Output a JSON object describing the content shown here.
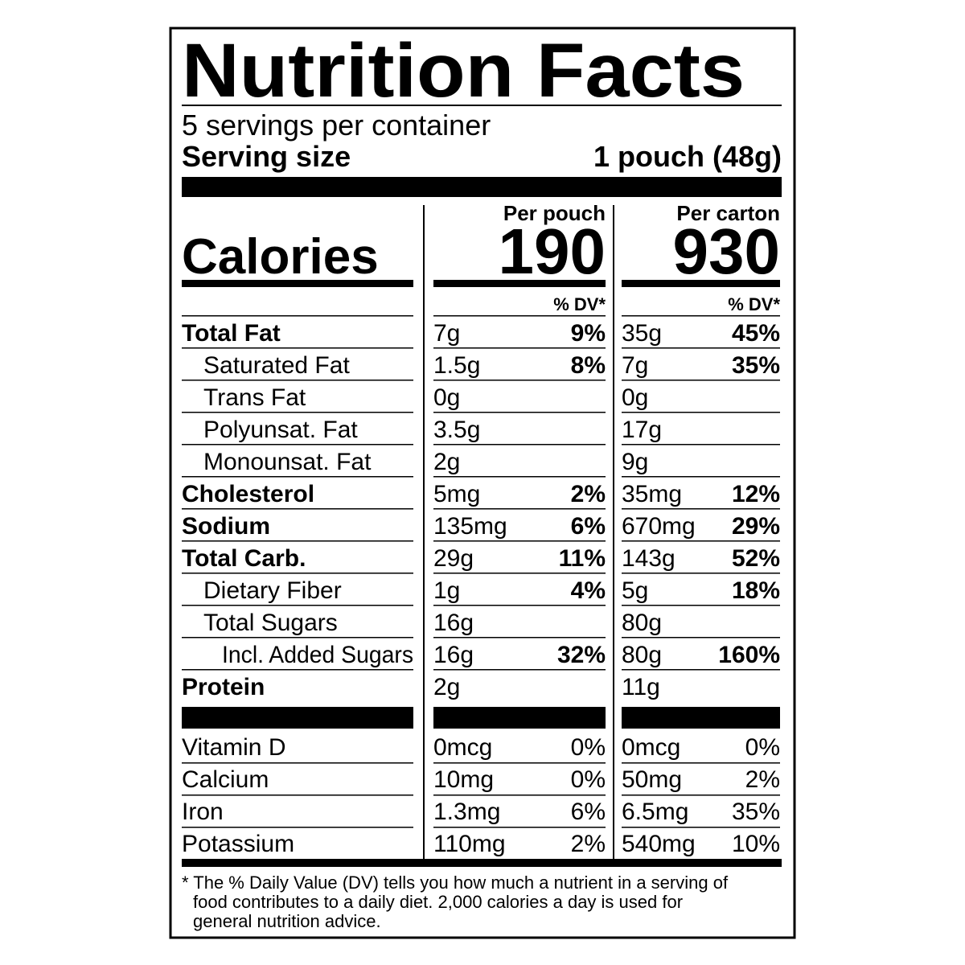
{
  "title": "Nutrition Facts",
  "servings": "5 servings per container",
  "serving_size": {
    "label": "Serving size",
    "value": "1 pouch (48g)"
  },
  "calories_label": "Calories",
  "columns": [
    {
      "header": "Per pouch",
      "calories": "190",
      "dv_header": "% DV*"
    },
    {
      "header": "Per carton",
      "calories": "930",
      "dv_header": "% DV*"
    }
  ],
  "nutrients": [
    {
      "name": "Total Fat",
      "bold": true,
      "indent": 0,
      "values": [
        [
          "7g",
          "9%"
        ],
        [
          "35g",
          "45%"
        ]
      ]
    },
    {
      "name": "Saturated Fat",
      "bold": false,
      "indent": 1,
      "values": [
        [
          "1.5g",
          "8%"
        ],
        [
          "7g",
          "35%"
        ]
      ]
    },
    {
      "name": "Trans Fat",
      "bold": false,
      "indent": 1,
      "values": [
        [
          "0g"
        ],
        [
          "0g"
        ]
      ]
    },
    {
      "name": "Polyunsat. Fat",
      "bold": false,
      "indent": 1,
      "values": [
        [
          "3.5g"
        ],
        [
          "17g"
        ]
      ]
    },
    {
      "name": "Monounsat. Fat",
      "bold": false,
      "indent": 1,
      "values": [
        [
          "2g"
        ],
        [
          "9g"
        ]
      ]
    },
    {
      "name": "Cholesterol",
      "bold": true,
      "indent": 0,
      "values": [
        [
          "5mg",
          "2%"
        ],
        [
          "35mg",
          "12%"
        ]
      ]
    },
    {
      "name": "Sodium",
      "bold": true,
      "indent": 0,
      "values": [
        [
          "135mg",
          "6%"
        ],
        [
          "670mg",
          "29%"
        ]
      ]
    },
    {
      "name": "Total Carb.",
      "bold": true,
      "indent": 0,
      "values": [
        [
          "29g",
          "11%"
        ],
        [
          "143g",
          "52%"
        ]
      ]
    },
    {
      "name": "Dietary Fiber",
      "bold": false,
      "indent": 1,
      "values": [
        [
          "1g",
          "4%"
        ],
        [
          "5g",
          "18%"
        ]
      ]
    },
    {
      "name": "Total Sugars",
      "bold": false,
      "indent": 1,
      "values": [
        [
          "16g"
        ],
        [
          "80g"
        ]
      ]
    },
    {
      "name": "Incl. Added Sugars",
      "bold": false,
      "indent": 2,
      "values": [
        [
          "16g",
          "32%"
        ],
        [
          "80g",
          "160%"
        ]
      ]
    },
    {
      "name": "Protein",
      "bold": true,
      "indent": 0,
      "values": [
        [
          "2g"
        ],
        [
          "11g"
        ]
      ]
    }
  ],
  "vitamins": [
    {
      "name": "Vitamin D",
      "values": [
        [
          "0mcg",
          "0%"
        ],
        [
          "0mcg",
          "0%"
        ]
      ]
    },
    {
      "name": "Calcium",
      "values": [
        [
          "10mg",
          "0%"
        ],
        [
          "50mg",
          "2%"
        ]
      ]
    },
    {
      "name": "Iron",
      "values": [
        [
          "1.3mg",
          "6%"
        ],
        [
          "6.5mg",
          "35%"
        ]
      ]
    },
    {
      "name": "Potassium",
      "values": [
        [
          "110mg",
          "2%"
        ],
        [
          "540mg",
          "10%"
        ]
      ]
    }
  ],
  "footnote": [
    "* The % Daily Value (DV) tells you how much a nutrient in a serving of",
    "food contributes to a daily diet. 2,000 calories a day is used for",
    "general nutrition advice."
  ]
}
